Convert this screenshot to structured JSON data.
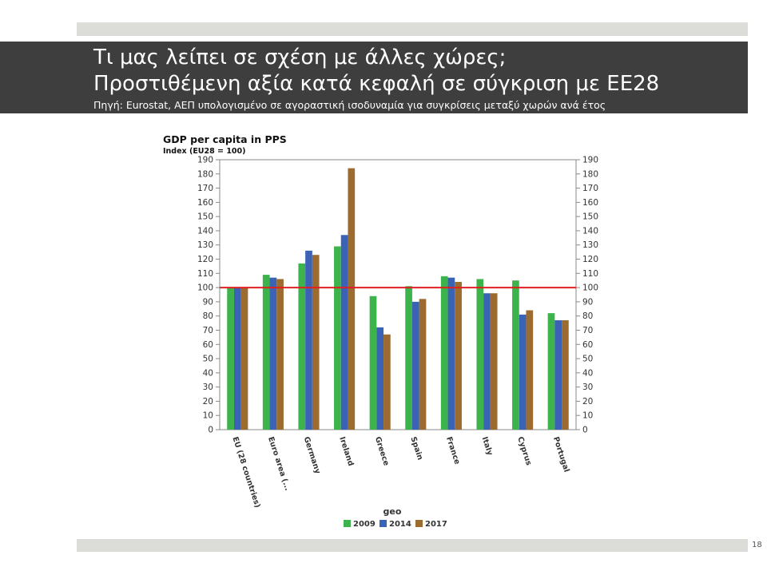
{
  "slide": {
    "title_line1": "Τι μας λείπει σε σχέση με άλλες χώρες;",
    "title_line2": "Προστιθέμενη αξία κατά κεφαλή σε σύγκριση με ΕΕ28",
    "source_line": "Πηγή: Eurostat, ΑΕΠ υπολογισμένο σε αγοραστική ισοδυναμία για συγκρίσεις μεταξύ χωρών ανά έτος",
    "page_number": "18"
  },
  "chart_data": {
    "type": "bar",
    "title": "GDP per capita in PPS",
    "subtitle": "Index (EU28 = 100)",
    "xlabel": "geo",
    "ylabel": "",
    "ylim": [
      0,
      190
    ],
    "yticks": [
      0,
      10,
      20,
      30,
      40,
      50,
      60,
      70,
      80,
      90,
      100,
      110,
      120,
      130,
      140,
      150,
      160,
      170,
      180,
      190
    ],
    "categories": [
      "EU (28 countries)",
      "Euro area (...",
      "Germany",
      "Ireland",
      "Greece",
      "Spain",
      "France",
      "Italy",
      "Cyprus",
      "Portugal"
    ],
    "series": [
      {
        "name": "2009",
        "color": "#3cb44b",
        "values": [
          100,
          109,
          117,
          129,
          94,
          101,
          108,
          106,
          105,
          82
        ]
      },
      {
        "name": "2014",
        "color": "#3a62b5",
        "values": [
          100,
          107,
          126,
          137,
          72,
          90,
          107,
          96,
          81,
          77
        ]
      },
      {
        "name": "2017",
        "color": "#9c6b30",
        "values": [
          100,
          106,
          123,
          184,
          67,
          92,
          104,
          96,
          84,
          77
        ]
      }
    ],
    "reference_line": {
      "value": 100,
      "color": "#e02020"
    },
    "grid": false,
    "legend": "bottom"
  }
}
